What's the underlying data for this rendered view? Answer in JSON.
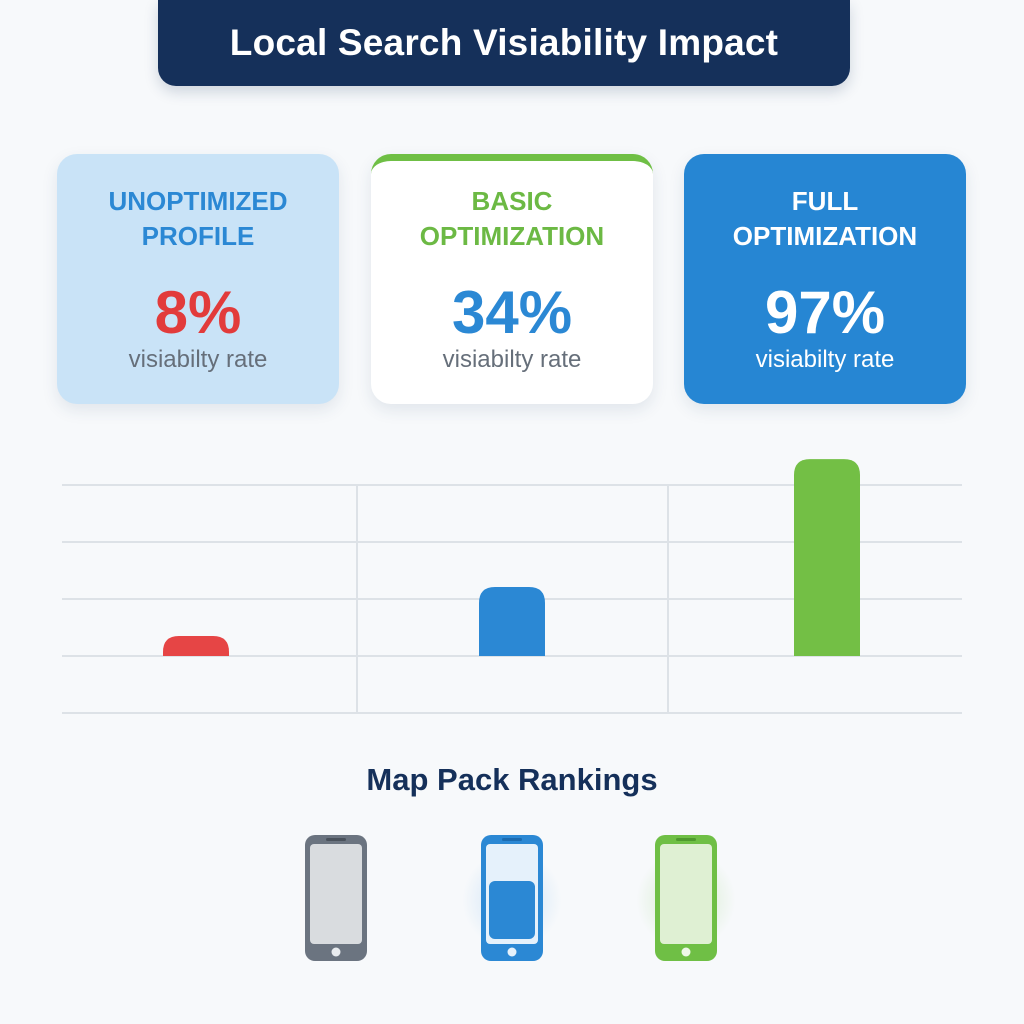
{
  "title": "Local Search Visiability Impact",
  "cards": [
    {
      "heading_line1": "UNOPTIMIZED",
      "heading_line2": "PROFILE",
      "value": "8%",
      "caption": "visiabilty rate"
    },
    {
      "heading_line1": "BASIC",
      "heading_line2": "OPTIMIZATION",
      "value": "34%",
      "caption": "visiabilty rate"
    },
    {
      "heading_line1": "FULL",
      "heading_line2": "OPTIMIZATION",
      "value": "97%",
      "caption": "visiabilty rate"
    }
  ],
  "chart_data": {
    "type": "bar",
    "categories": [
      "",
      "",
      ""
    ],
    "values": [
      8,
      34,
      97
    ],
    "colors": [
      "#e64545",
      "#2b88d4",
      "#73bf45"
    ],
    "title": "",
    "xlabel": "",
    "ylabel": "",
    "ylim": [
      0,
      100
    ],
    "grid": true
  },
  "map_pack": {
    "title": "Map Pack Rankings",
    "phones": [
      {
        "icon": "phone-icon",
        "color": "#6b7480"
      },
      {
        "icon": "phone-icon",
        "color": "#2b88d4"
      },
      {
        "icon": "phone-icon",
        "color": "#6fbf45"
      }
    ]
  }
}
